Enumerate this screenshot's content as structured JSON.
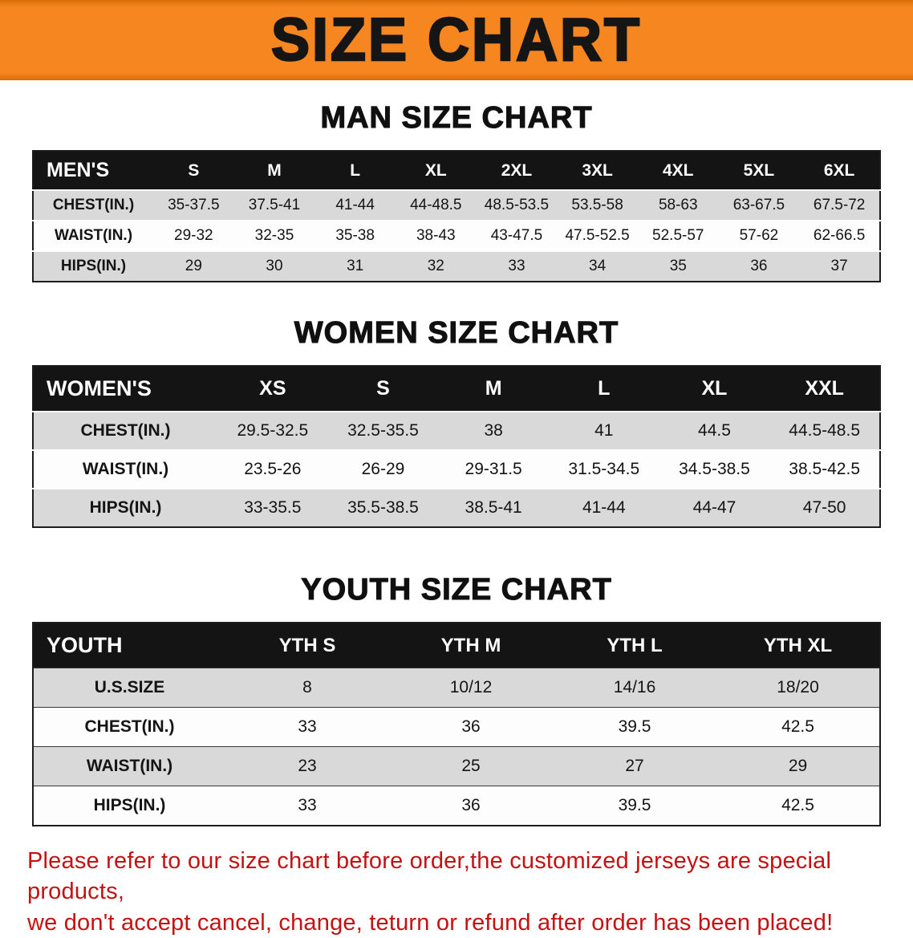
{
  "banner": {
    "title": "SIZE CHART",
    "bg_color": "#f6861f"
  },
  "tables": {
    "men": {
      "heading": "MAN SIZE CHART",
      "label": "MEN'S",
      "columns": [
        "S",
        "M",
        "L",
        "XL",
        "2XL",
        "3XL",
        "4XL",
        "5XL",
        "6XL"
      ],
      "rows": [
        {
          "label": "CHEST(IN.)",
          "values": [
            "35-37.5",
            "37.5-41",
            "41-44",
            "44-48.5",
            "48.5-53.5",
            "53.5-58",
            "58-63",
            "63-67.5",
            "67.5-72"
          ]
        },
        {
          "label": "WAIST(IN.)",
          "values": [
            "29-32",
            "32-35",
            "35-38",
            "38-43",
            "43-47.5",
            "47.5-52.5",
            "52.5-57",
            "57-62",
            "62-66.5"
          ]
        },
        {
          "label": "HIPS(IN.)",
          "values": [
            "29",
            "30",
            "31",
            "32",
            "33",
            "34",
            "35",
            "36",
            "37"
          ]
        }
      ]
    },
    "women": {
      "heading": "WOMEN SIZE CHART",
      "label": "WOMEN'S",
      "columns": [
        "XS",
        "S",
        "M",
        "L",
        "XL",
        "XXL"
      ],
      "rows": [
        {
          "label": "CHEST(IN.)",
          "values": [
            "29.5-32.5",
            "32.5-35.5",
            "38",
            "41",
            "44.5",
            "44.5-48.5"
          ]
        },
        {
          "label": "WAIST(IN.)",
          "values": [
            "23.5-26",
            "26-29",
            "29-31.5",
            "31.5-34.5",
            "34.5-38.5",
            "38.5-42.5"
          ]
        },
        {
          "label": "HIPS(IN.)",
          "values": [
            "33-35.5",
            "35.5-38.5",
            "38.5-41",
            "41-44",
            "44-47",
            "47-50"
          ]
        }
      ]
    },
    "youth": {
      "heading": "YOUTH SIZE CHART",
      "label": "YOUTH",
      "columns": [
        "YTH S",
        "YTH M",
        "YTH L",
        "YTH XL"
      ],
      "rows": [
        {
          "label": "U.S.SIZE",
          "values": [
            "8",
            "10/12",
            "14/16",
            "18/20"
          ]
        },
        {
          "label": "CHEST(IN.)",
          "values": [
            "33",
            "36",
            "39.5",
            "42.5"
          ]
        },
        {
          "label": "WAIST(IN.)",
          "values": [
            "23",
            "25",
            "27",
            "29"
          ]
        },
        {
          "label": "HIPS(IN.)",
          "values": [
            "33",
            "36",
            "39.5",
            "42.5"
          ]
        }
      ]
    }
  },
  "footer": {
    "line1": "Please refer to our size chart before order,the customized jerseys are special products,",
    "line2": "we don't accept cancel, change, teturn or refund after order has been placed!",
    "text_color": "#c41212"
  }
}
